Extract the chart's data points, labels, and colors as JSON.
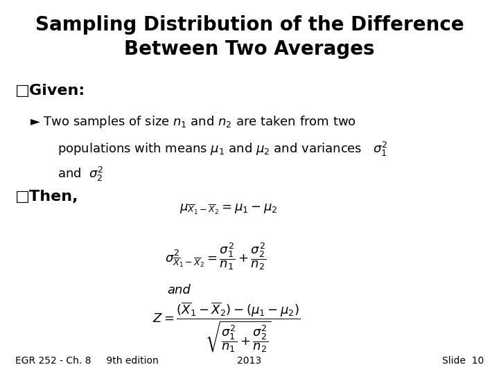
{
  "title_line1": "Sampling Distribution of the Difference",
  "title_line2": "Between Two Averages",
  "title_fontsize": 20,
  "title_fontweight": "bold",
  "background_color": "#ffffff",
  "text_color": "#000000",
  "given_label": "□Given:",
  "given_fontsize": 16,
  "bullet_text_line1": "► Two samples of size $n_1$ and $n_2$ are taken from two",
  "bullet_text_line2": "populations with means $\\mu_1$ and $\\mu_2$ and variances   $\\sigma_1^2$",
  "bullet_text_line3": "and  $\\sigma_2^2$",
  "then_label": "□Then,",
  "then_fontsize": 16,
  "eq1": "$\\mu_{\\overline{X}_1 - \\overline{X}_2} = \\mu_1 - \\mu_2$",
  "eq2": "$\\sigma^2_{\\overline{X}_1 - \\overline{X}_2} = \\dfrac{\\sigma_1^2}{n_1} + \\dfrac{\\sigma_2^2}{n_2}$",
  "eq3": "and",
  "eq4": "$Z = \\dfrac{(\\overline{X}_1 - \\overline{X}_2) - (\\mu_1 - \\mu_2)}{\\sqrt{\\dfrac{\\sigma_1^2}{n_1} + \\dfrac{\\sigma_2^2}{n_2}}}$",
  "footer_left": "EGR 252 - Ch. 8     9th edition",
  "footer_center": "2013",
  "footer_right": "Slide  10",
  "footer_fontsize": 10
}
